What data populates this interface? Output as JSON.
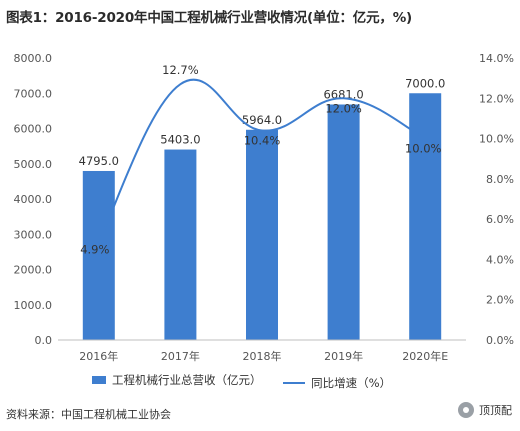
{
  "title": "图表1：2016-2020年中国工程机械行业营收情况(单位：亿元，%)",
  "chart_data": {
    "type": "bar",
    "categories": [
      "2016年",
      "2017年",
      "2018年",
      "2019年",
      "2020年E"
    ],
    "series": [
      {
        "name": "工程机械行业总营收（亿元）",
        "type": "bar",
        "axis": "left",
        "values": [
          4795.0,
          5403.0,
          5964.0,
          6681.0,
          7000.0
        ],
        "labels": [
          "4795.0",
          "5403.0",
          "5964.0",
          "6681.0",
          "7000.0"
        ],
        "color": "#3e7ecf"
      },
      {
        "name": "同比增速（%）",
        "type": "line",
        "axis": "right",
        "values": [
          4.9,
          12.7,
          10.4,
          12.0,
          10.0
        ],
        "labels": [
          "4.9%",
          "12.7%",
          "10.4%",
          "12.0%",
          "10.0%"
        ],
        "color": "#3e7ecf"
      }
    ],
    "y_left": {
      "ylim": [
        0,
        8000
      ],
      "ticks": [
        "0.0",
        "1000.0",
        "2000.0",
        "3000.0",
        "4000.0",
        "5000.0",
        "6000.0",
        "7000.0",
        "8000.0"
      ]
    },
    "y_right": {
      "ylim": [
        0,
        14
      ],
      "ticks": [
        "0.0%",
        "2.0%",
        "4.0%",
        "6.0%",
        "8.0%",
        "10.0%",
        "12.0%",
        "14.0%"
      ]
    },
    "legend_position": "bottom",
    "grid": false
  },
  "source": "资料来源：中国工程机械工业协会",
  "badge": "顶顶配"
}
